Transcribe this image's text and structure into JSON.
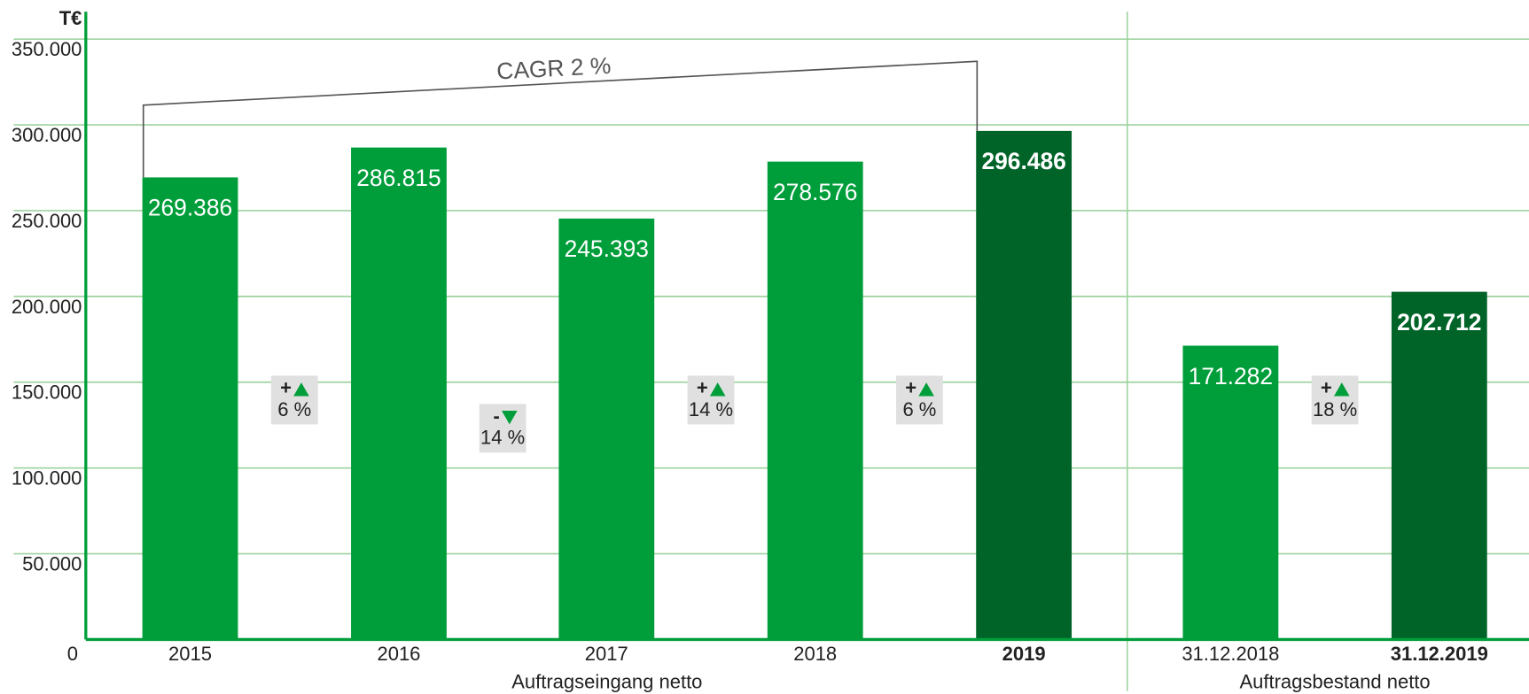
{
  "chart_data": {
    "type": "bar",
    "y_unit": "T€",
    "categories": [
      "2015",
      "2016",
      "2017",
      "2018",
      "2019",
      "31.12.2018",
      "31.12.2019"
    ],
    "values": [
      269386,
      286815,
      245393,
      278576,
      296486,
      171282,
      202712
    ],
    "value_labels": [
      "269.386",
      "286.815",
      "245.393",
      "278.576",
      "296.486",
      "171.282",
      "202.712"
    ],
    "highlight": [
      false,
      false,
      false,
      false,
      true,
      false,
      true
    ],
    "color": "#009e3a",
    "highlight_color": "#006428",
    "groups": [
      {
        "label": "Auftragseingang netto",
        "from": 0,
        "to": 4
      },
      {
        "label": "Auftragsbestand netto",
        "from": 5,
        "to": 6
      }
    ],
    "changes": [
      {
        "sign": "+",
        "label": "6 %",
        "direction": "up",
        "from": 0,
        "to": 1
      },
      {
        "sign": "-",
        "label": "14 %",
        "direction": "down",
        "from": 1,
        "to": 2
      },
      {
        "sign": "+",
        "label": "14 %",
        "direction": "up",
        "from": 2,
        "to": 3
      },
      {
        "sign": "+",
        "label": "6 %",
        "direction": "up",
        "from": 3,
        "to": 4
      },
      {
        "sign": "+",
        "label": "18 %",
        "direction": "up",
        "from": 5,
        "to": 6
      }
    ],
    "cagr": {
      "label": "CAGR 2 %",
      "from": 0,
      "to": 4
    },
    "ylim": [
      0,
      366000
    ],
    "yticks": [
      0,
      {
        "value": 50000,
        "label": "50.000"
      },
      {
        "value": 100000,
        "label": "100.000"
      },
      {
        "value": 150000,
        "label": "150.000"
      },
      {
        "value": 200000,
        "label": "200.000"
      },
      {
        "value": 250000,
        "label": "250.000"
      },
      {
        "value": 300000,
        "label": "300.000"
      },
      {
        "value": 350000,
        "label": "350.000"
      }
    ],
    "grid": true
  }
}
